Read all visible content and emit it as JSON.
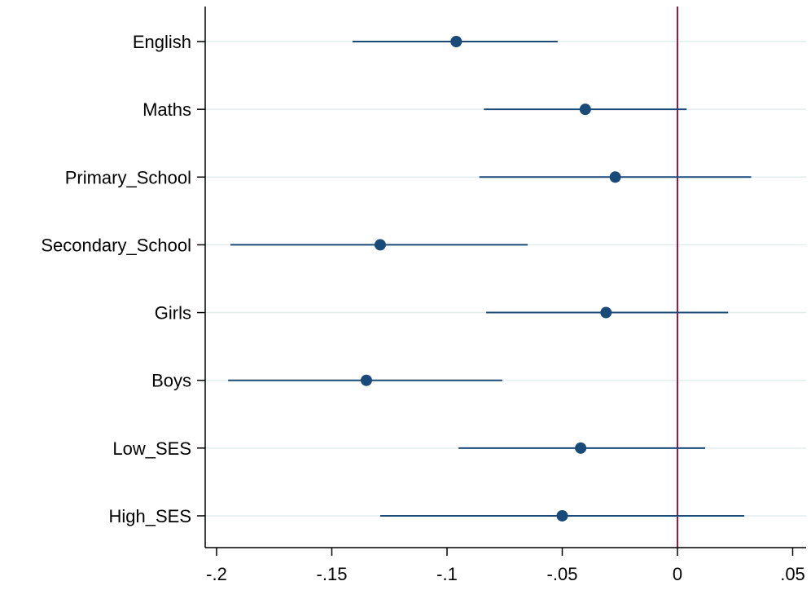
{
  "chart_data": {
    "type": "scatter",
    "subtype": "coefficient-plot",
    "title": "",
    "xlabel": "",
    "ylabel": "",
    "xlim": [
      -0.205,
      0.057
    ],
    "x_ticks": [
      {
        "value": -0.2,
        "label": "-.2"
      },
      {
        "value": -0.15,
        "label": "-.15"
      },
      {
        "value": -0.1,
        "label": "-.1"
      },
      {
        "value": -0.05,
        "label": "-.05"
      },
      {
        "value": 0,
        "label": "0"
      },
      {
        "value": 0.05,
        "label": ".05"
      }
    ],
    "reference_line": {
      "x": 0,
      "color": "#a0163a"
    },
    "grid": "horizontal lines at each category",
    "legend": "none",
    "colors": {
      "series": "#1a4a78",
      "grid": "#e2eeee",
      "axis": "#000000"
    },
    "categories": [
      "English",
      "Maths",
      "Primary_School",
      "Secondary_School",
      "Girls",
      "Boys",
      "Low_SES",
      "High_SES"
    ],
    "estimates": [
      -0.096,
      -0.04,
      -0.027,
      -0.129,
      -0.031,
      -0.135,
      -0.042,
      -0.05
    ],
    "ci_lower": [
      -0.141,
      -0.084,
      -0.086,
      -0.194,
      -0.083,
      -0.195,
      -0.095,
      -0.129
    ],
    "ci_upper": [
      -0.052,
      0.004,
      0.032,
      -0.065,
      0.022,
      -0.076,
      0.012,
      0.029
    ]
  }
}
